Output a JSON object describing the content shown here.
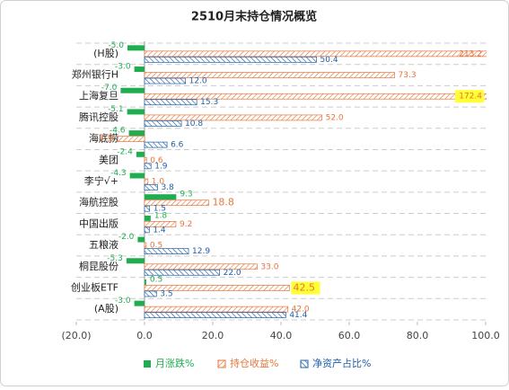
{
  "chart_data": {
    "type": "hbar",
    "title": "2510月末持仓情况概览",
    "categories": [
      "(H股)",
      "郑州银行H",
      "上海复旦",
      "腾讯控股",
      "海底捞",
      "美团",
      "李宁√+",
      "海航控股",
      "中国出版",
      "五粮液",
      "桐昆股份",
      "创业板ETF",
      "(A股)"
    ],
    "series": [
      {
        "name": "月涨跌%",
        "color": "#1fad4f",
        "pattern": "solid",
        "values": [
          -5.0,
          -3.0,
          -7.0,
          -5.1,
          -4.6,
          -2.4,
          -4.3,
          9.3,
          1.8,
          -2.0,
          -5.3,
          0.5,
          -3.0
        ],
        "value_labels": [
          "-5.0",
          "-3.0",
          "-7.0",
          "-5.1",
          "-4.6",
          "-2.4",
          "-4.3",
          "9.3",
          "1.8",
          "-2.0",
          "-5.3",
          "0.5",
          "-3.0"
        ]
      },
      {
        "name": "持仓收益%",
        "color": "#e8743b",
        "pattern": "hatch",
        "values": [
          213.2,
          73.3,
          172.4,
          52.0,
          -7.9,
          0.6,
          1.0,
          18.8,
          9.2,
          0.5,
          33.0,
          42.5,
          42.0
        ],
        "value_labels": [
          "213.2",
          "73.3",
          "172.4",
          "52.0",
          "-7.9",
          "0.6",
          "1.0",
          "18.8",
          "9.2",
          "0.5",
          "33.0",
          "42.5",
          "42.0"
        ]
      },
      {
        "name": "净资产占比%",
        "color": "#1f5fa8",
        "pattern": "hatch",
        "values": [
          50.4,
          12.0,
          15.3,
          10.8,
          6.6,
          1.9,
          3.8,
          1.5,
          1.4,
          12.9,
          22.0,
          3.5,
          41.4
        ],
        "value_labels": [
          "50.4",
          "12.0",
          "15.3",
          "10.8",
          "6.6",
          "1.9",
          "3.8",
          "1.5",
          "1.4",
          "12.9",
          "22.0",
          "3.5",
          "41.4"
        ]
      }
    ],
    "xlim": [
      -20,
      100
    ],
    "xticks": [
      {
        "value": -20,
        "label": "(20.0)"
      },
      {
        "value": 0,
        "label": "0.0"
      },
      {
        "value": 20,
        "label": "20.0"
      },
      {
        "value": 40,
        "label": "40.0"
      },
      {
        "value": 60,
        "label": "60.0"
      },
      {
        "value": 80,
        "label": "80.0"
      },
      {
        "value": 100,
        "label": "100.0"
      }
    ],
    "grid": true,
    "legend": "bottom"
  }
}
